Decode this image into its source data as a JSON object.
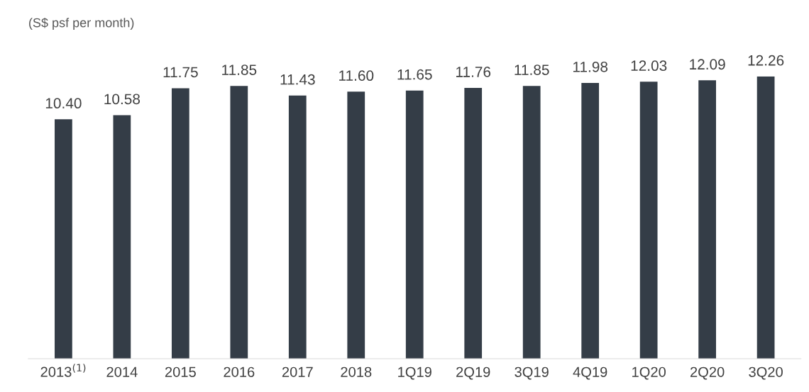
{
  "chart_data": {
    "type": "bar",
    "title": "(S$ psf per month)",
    "categories": [
      "2013$^{(1)}$",
      "2014",
      "2015",
      "2016",
      "2017",
      "2018",
      "1Q19",
      "2Q19",
      "3Q19",
      "4Q19",
      "1Q20",
      "2Q20",
      "3Q20"
    ],
    "values": [
      10.4,
      10.58,
      11.75,
      11.85,
      11.43,
      11.6,
      11.65,
      11.76,
      11.85,
      11.98,
      12.03,
      12.09,
      12.26
    ],
    "value_labels": [
      "10.40",
      "10.58",
      "11.75",
      "11.85",
      "11.43",
      "11.60",
      "11.65",
      "11.76",
      "11.85",
      "11.98",
      "12.03",
      "12.09",
      "12.26"
    ],
    "color": "#343d47",
    "grid": false,
    "legend": false,
    "tick_labels": "x"
  }
}
